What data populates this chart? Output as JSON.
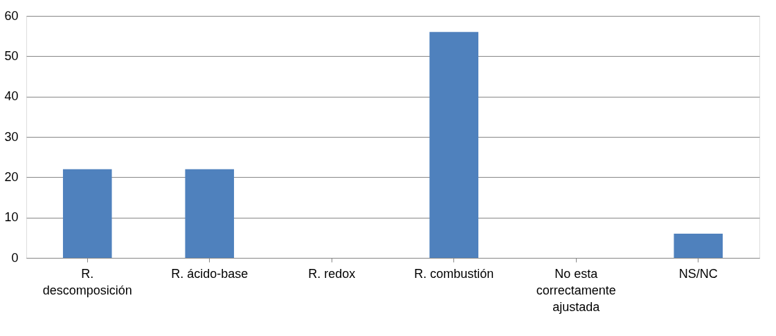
{
  "chart_data": {
    "type": "bar",
    "categories": [
      "R. descomposición",
      "R. ácido-base",
      "R. redox",
      "R. combustión",
      "No esta correctamente ajustada",
      "NS/NC"
    ],
    "values": [
      22,
      22,
      0,
      56,
      0,
      6
    ],
    "color": "#4f81bd",
    "ylim": [
      0,
      60
    ],
    "yticks": [
      0,
      10,
      20,
      30,
      40,
      50,
      60
    ],
    "grid": "y"
  }
}
